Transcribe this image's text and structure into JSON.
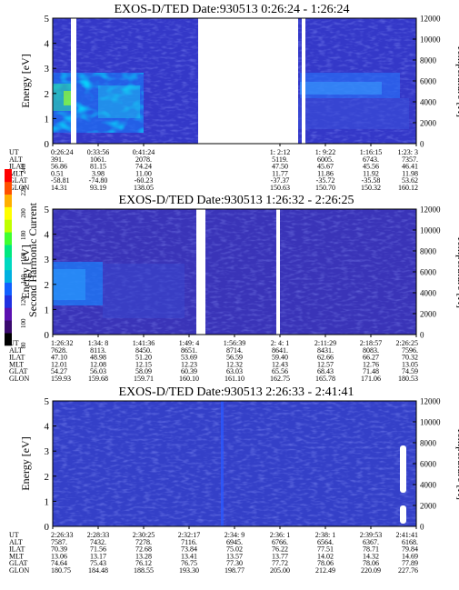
{
  "color_bar": {
    "label": "Second Harmonic Current",
    "ticks": [
      "80",
      "100",
      "120",
      "140",
      "160",
      "180",
      "200",
      "220",
      "240"
    ],
    "colors": [
      "#000000",
      "#3a0a6e",
      "#5a10b0",
      "#2030e0",
      "#1060ff",
      "#00b0e0",
      "#00d8c0",
      "#00e880",
      "#40ff30",
      "#c0ff00",
      "#ffff00",
      "#ffb000",
      "#ff5000",
      "#ff0000"
    ]
  },
  "ephemeris_labels": [
    "UT",
    "ALT",
    "ILAT",
    "MLT",
    "GLAT",
    "GLON"
  ],
  "chart_data": [
    {
      "type": "heatmap",
      "title": "EXOS-D/TED   Date:930513  0:26:24 - 1:26:24",
      "ylabel": "Energy [eV]",
      "y2label": "Temperature [K]",
      "ylim": [
        0,
        5
      ],
      "yticks": [
        "0",
        "1",
        "2",
        "3",
        "4",
        "5"
      ],
      "y2lim": [
        0,
        12000
      ],
      "y2ticks": [
        "0",
        "2000",
        "4000",
        "6000",
        "8000",
        "10000",
        "12000"
      ],
      "data_gaps": [
        [
          0.05,
          0.065
        ],
        [
          0.4,
          0.675
        ],
        [
          0.685,
          0.695
        ]
      ],
      "ephemeris": [
        {
          "UT": "0:26:24",
          "ALT": "391.",
          "ILAT": "56.86",
          "MLT": "0.51",
          "GLAT": "-58.81",
          "GLON": "14.31"
        },
        {
          "UT": "0:33:56",
          "ALT": "1061.",
          "ILAT": "81.15",
          "MLT": "3.98",
          "GLAT": "-74.80",
          "GLON": "93.19"
        },
        {
          "UT": "0:41:24",
          "ALT": "2078.",
          "ILAT": "74.24",
          "MLT": "11.00",
          "GLAT": "-60.23",
          "GLON": "138.05"
        },
        {
          "UT": "",
          "ALT": "",
          "ILAT": "",
          "MLT": "",
          "GLAT": "",
          "GLON": ""
        },
        {
          "UT": "",
          "ALT": "",
          "ILAT": "",
          "MLT": "",
          "GLAT": "",
          "GLON": ""
        },
        {
          "UT": "1: 2:12",
          "ALT": "5119.",
          "ILAT": "47.50",
          "MLT": "11.77",
          "GLAT": "-37.37",
          "GLON": "150.63"
        },
        {
          "UT": "1: 9:22",
          "ALT": "6005.",
          "ILAT": "45.67",
          "MLT": "11.86",
          "GLAT": "-35.72",
          "GLON": "150.70"
        },
        {
          "UT": "1:16:15",
          "ALT": "6743.",
          "ILAT": "45.56",
          "MLT": "11.92",
          "GLAT": "-35.58",
          "GLON": "150.32"
        },
        {
          "UT": "1:23: 3",
          "ALT": "7357.",
          "ILAT": "46.41",
          "MLT": "11.98",
          "GLAT": "53.62",
          "GLON": "160.12"
        }
      ]
    },
    {
      "type": "heatmap",
      "title": "EXOS-D/TED   Date:930513  1:26:32 - 2:26:25",
      "ylabel": "Energy [eV]",
      "y2label": "Temperature [K]",
      "ylim": [
        0,
        5
      ],
      "yticks": [
        "0",
        "1",
        "2",
        "3",
        "4",
        "5"
      ],
      "y2lim": [
        0,
        12000
      ],
      "y2ticks": [
        "0",
        "2000",
        "4000",
        "6000",
        "8000",
        "10000",
        "12000"
      ],
      "data_gaps": [
        [
          0.395,
          0.42
        ],
        [
          0.615,
          0.625
        ]
      ],
      "ephemeris": [
        {
          "UT": "1:26:32",
          "ALT": "7628.",
          "ILAT": "47.10",
          "MLT": "12.01",
          "GLAT": "54.27",
          "GLON": "159.93"
        },
        {
          "UT": "1:34: 8",
          "ALT": "8113.",
          "ILAT": "48.98",
          "MLT": "12.08",
          "GLAT": "56.03",
          "GLON": "159.68"
        },
        {
          "UT": "1:41:36",
          "ALT": "8450.",
          "ILAT": "51.20",
          "MLT": "12.15",
          "GLAT": "58.09",
          "GLON": "159.71"
        },
        {
          "UT": "1:49: 4",
          "ALT": "8651.",
          "ILAT": "53.69",
          "MLT": "12.23",
          "GLAT": "60.39",
          "GLON": "160.10"
        },
        {
          "UT": "1:56:39",
          "ALT": "8714.",
          "ILAT": "56.59",
          "MLT": "12.32",
          "GLAT": "63.03",
          "GLON": "161.10"
        },
        {
          "UT": "2: 4: 1",
          "ALT": "8641.",
          "ILAT": "59.40",
          "MLT": "12.43",
          "GLAT": "65.56",
          "GLON": "162.75"
        },
        {
          "UT": "2:11:29",
          "ALT": "8431.",
          "ILAT": "62.66",
          "MLT": "12.57",
          "GLAT": "68.43",
          "GLON": "165.78"
        },
        {
          "UT": "2:18:57",
          "ALT": "8083.",
          "ILAT": "66.27",
          "MLT": "12.76",
          "GLAT": "71.48",
          "GLON": "171.06"
        },
        {
          "UT": "2:26:25",
          "ALT": "7596.",
          "ILAT": "70.32",
          "MLT": "13.05",
          "GLAT": "74.59",
          "GLON": "180.53"
        }
      ]
    },
    {
      "type": "heatmap",
      "title": "EXOS-D/TED   Date:930513  2:26:33 - 2:41:41",
      "ylabel": "Energy [eV]",
      "y2label": "Temperature [K]",
      "ylim": [
        0,
        5
      ],
      "yticks": [
        "0",
        "1",
        "2",
        "3",
        "4",
        "5"
      ],
      "y2lim": [
        0,
        12000
      ],
      "y2ticks": [
        "0",
        "2000",
        "4000",
        "6000",
        "8000",
        "10000",
        "12000"
      ],
      "data_gaps": [],
      "ephemeris": [
        {
          "UT": "2:26:33",
          "ALT": "7587.",
          "ILAT": "70.39",
          "MLT": "13.06",
          "GLAT": "74.64",
          "GLON": "180.75"
        },
        {
          "UT": "2:28:33",
          "ALT": "7432.",
          "ILAT": "71.56",
          "MLT": "13.17",
          "GLAT": "75.43",
          "GLON": "184.48"
        },
        {
          "UT": "2:30:25",
          "ALT": "7278.",
          "ILAT": "72.68",
          "MLT": "13.28",
          "GLAT": "76.12",
          "GLON": "188.55"
        },
        {
          "UT": "2:32:17",
          "ALT": "7116.",
          "ILAT": "73.84",
          "MLT": "13.41",
          "GLAT": "76.75",
          "GLON": "193.30"
        },
        {
          "UT": "2:34: 9",
          "ALT": "6945.",
          "ILAT": "75.02",
          "MLT": "13.57",
          "GLAT": "77.30",
          "GLON": "198.77"
        },
        {
          "UT": "2:36: 1",
          "ALT": "6766.",
          "ILAT": "76.22",
          "MLT": "13.77",
          "GLAT": "77.72",
          "GLON": "205.00"
        },
        {
          "UT": "2:38: 1",
          "ALT": "6564.",
          "ILAT": "77.51",
          "MLT": "14.02",
          "GLAT": "78.06",
          "GLON": "212.49"
        },
        {
          "UT": "2:39:53",
          "ALT": "6367.",
          "ILAT": "78.71",
          "MLT": "14.32",
          "GLAT": "78.06",
          "GLON": "220.09"
        },
        {
          "UT": "2:41:41",
          "ALT": "6168.",
          "ILAT": "79.84",
          "MLT": "14.69",
          "GLAT": "77.89",
          "GLON": "227.76"
        }
      ]
    }
  ]
}
